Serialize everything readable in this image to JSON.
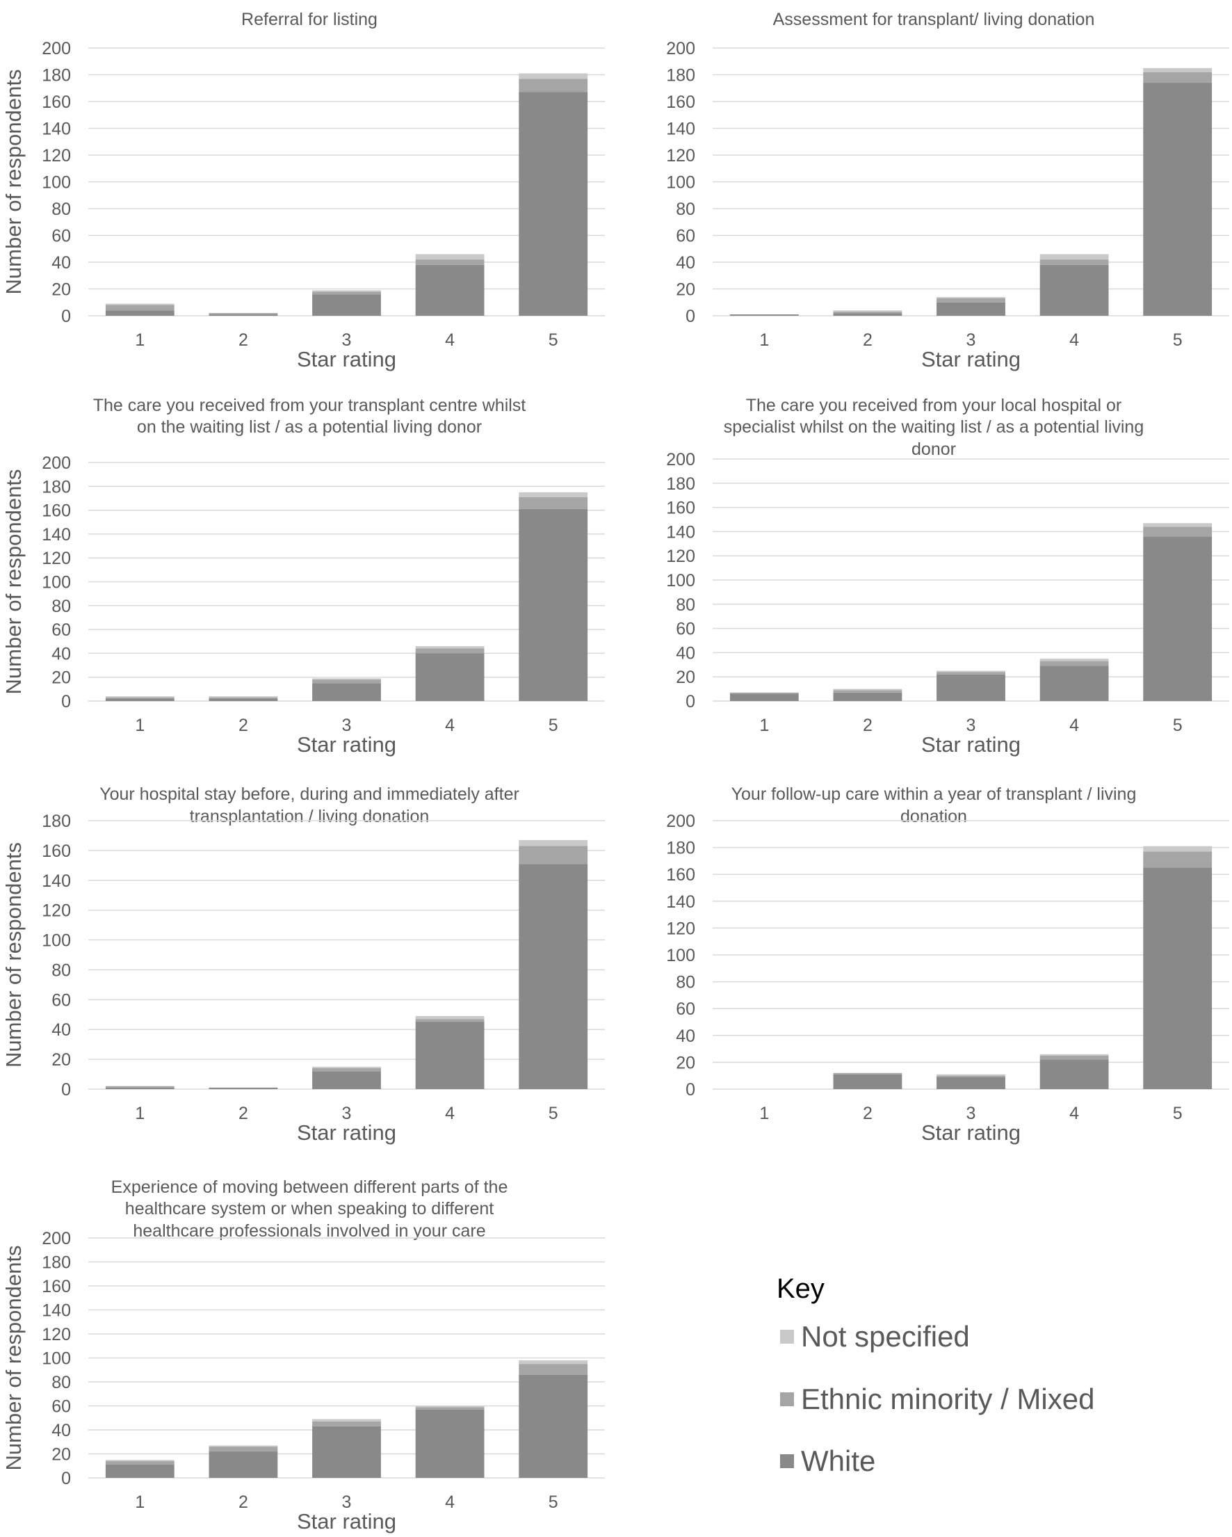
{
  "colors": {
    "White": "#898989",
    "Ethnic minority / Mixed": "#a5a5a5",
    "Not specified": "#c9c9c9"
  },
  "legend": {
    "title": "Key",
    "items": [
      "Not specified",
      "Ethnic minority / Mixed",
      "White"
    ]
  },
  "chart_data": [
    {
      "type": "bar",
      "stacked": true,
      "title": [
        "Referral for listing"
      ],
      "categories": [
        "1",
        "2",
        "3",
        "4",
        "5"
      ],
      "xlabel": "Star rating",
      "ylabel": "Number of respondents",
      "ylim": [
        0,
        200
      ],
      "ytick_step": 20,
      "series": [
        {
          "name": "White",
          "values": [
            4,
            1,
            16,
            38,
            167
          ]
        },
        {
          "name": "Ethnic minority / Mixed",
          "values": [
            4,
            1,
            2,
            4,
            10
          ]
        },
        {
          "name": "Not specified",
          "values": [
            1,
            0,
            1,
            4,
            4
          ]
        }
      ]
    },
    {
      "type": "bar",
      "stacked": true,
      "title": [
        "Assessment for transplant/ living donation"
      ],
      "categories": [
        "1",
        "2",
        "3",
        "4",
        "5"
      ],
      "xlabel": "Star rating",
      "ylabel": "",
      "ylim": [
        0,
        200
      ],
      "ytick_step": 20,
      "series": [
        {
          "name": "White",
          "values": [
            1,
            2,
            10,
            38,
            174
          ]
        },
        {
          "name": "Ethnic minority / Mixed",
          "values": [
            0,
            1,
            3,
            4,
            8
          ]
        },
        {
          "name": "Not specified",
          "values": [
            0,
            1,
            1,
            4,
            3
          ]
        }
      ]
    },
    {
      "type": "bar",
      "stacked": true,
      "title": [
        "The care you received from your transplant centre whilst",
        "on the waiting list / as a potential living donor"
      ],
      "categories": [
        "1",
        "2",
        "3",
        "4",
        "5"
      ],
      "xlabel": "Star rating",
      "ylabel": "Number of respondents",
      "ylim": [
        0,
        200
      ],
      "ytick_step": 20,
      "series": [
        {
          "name": "White",
          "values": [
            2,
            2,
            15,
            40,
            161
          ]
        },
        {
          "name": "Ethnic minority / Mixed",
          "values": [
            1,
            1,
            3,
            4,
            10
          ]
        },
        {
          "name": "Not specified",
          "values": [
            1,
            1,
            1,
            2,
            4
          ]
        }
      ]
    },
    {
      "type": "bar",
      "stacked": true,
      "title": [
        "The care you received from your local hospital or",
        "specialist whilst on the waiting list / as a potential living",
        "donor"
      ],
      "categories": [
        "1",
        "2",
        "3",
        "4",
        "5"
      ],
      "xlabel": "Star rating",
      "ylabel": "",
      "ylim": [
        0,
        200
      ],
      "ytick_step": 20,
      "series": [
        {
          "name": "White",
          "values": [
            6,
            7,
            22,
            29,
            136
          ]
        },
        {
          "name": "Ethnic minority / Mixed",
          "values": [
            1,
            2,
            2,
            4,
            8
          ]
        },
        {
          "name": "Not specified",
          "values": [
            0,
            1,
            1,
            2,
            3
          ]
        }
      ]
    },
    {
      "type": "bar",
      "stacked": true,
      "title": [
        "Your hospital stay before, during and immediately after",
        "transplantation / living donation"
      ],
      "categories": [
        "1",
        "2",
        "3",
        "4",
        "5"
      ],
      "xlabel": "Star rating",
      "ylabel": "Number of respondents",
      "ylim": [
        0,
        180
      ],
      "ytick_step": 20,
      "series": [
        {
          "name": "White",
          "values": [
            1,
            1,
            12,
            45,
            151
          ]
        },
        {
          "name": "Ethnic minority / Mixed",
          "values": [
            1,
            0,
            2,
            2,
            12
          ]
        },
        {
          "name": "Not specified",
          "values": [
            0,
            0,
            1,
            2,
            4
          ]
        }
      ]
    },
    {
      "type": "bar",
      "stacked": true,
      "title": [
        "Your follow-up care within a year of transplant / living",
        "donation"
      ],
      "categories": [
        "1",
        "2",
        "3",
        "4",
        "5"
      ],
      "xlabel": "Star rating",
      "ylabel": "",
      "ylim": [
        0,
        200
      ],
      "ytick_step": 20,
      "series": [
        {
          "name": "White",
          "values": [
            0,
            11,
            9,
            22,
            165
          ]
        },
        {
          "name": "Ethnic minority / Mixed",
          "values": [
            0,
            1,
            1,
            3,
            12
          ]
        },
        {
          "name": "Not specified",
          "values": [
            0,
            0,
            1,
            1,
            4
          ]
        }
      ]
    },
    {
      "type": "bar",
      "stacked": true,
      "title": [
        "Experience of moving between different parts of the",
        "healthcare system or when speaking to different",
        "healthcare professionals involved in your care"
      ],
      "categories": [
        "1",
        "2",
        "3",
        "4",
        "5"
      ],
      "xlabel": "Star rating",
      "ylabel": "Number of respondents",
      "ylim": [
        0,
        200
      ],
      "ytick_step": 20,
      "series": [
        {
          "name": "White",
          "values": [
            11,
            22,
            43,
            57,
            86
          ]
        },
        {
          "name": "Ethnic minority / Mixed",
          "values": [
            3,
            4,
            4,
            2,
            9
          ]
        },
        {
          "name": "Not specified",
          "values": [
            1,
            1,
            2,
            1,
            3
          ]
        }
      ]
    }
  ]
}
